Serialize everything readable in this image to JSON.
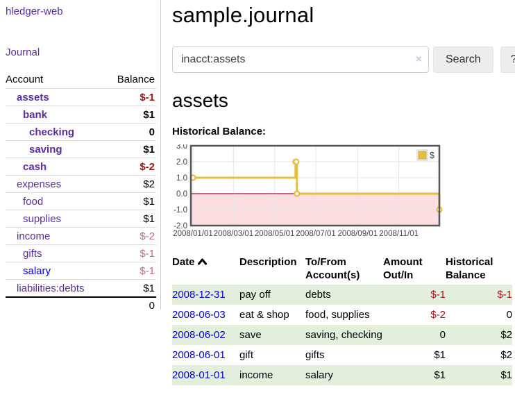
{
  "sidebar": {
    "brand": "hledger-web",
    "nav": {
      "journal": "Journal"
    },
    "accounts": {
      "headers": [
        "Account",
        "Balance"
      ],
      "rows": [
        {
          "account": "assets",
          "balance": "$-1",
          "indent": 1,
          "bold": true,
          "neg": "strong"
        },
        {
          "account": "bank",
          "balance": "$1",
          "indent": 2,
          "bold": true
        },
        {
          "account": "checking",
          "balance": "0",
          "indent": 3,
          "bold": true
        },
        {
          "account": "saving",
          "balance": "$1",
          "indent": 3,
          "bold": true
        },
        {
          "account": "cash",
          "balance": "$-2",
          "indent": 2,
          "bold": true,
          "neg": "strong"
        },
        {
          "account": "expenses",
          "balance": "$2",
          "indent": 1
        },
        {
          "account": "food",
          "balance": "$1",
          "indent": 2
        },
        {
          "account": "supplies",
          "balance": "$1",
          "indent": 2
        },
        {
          "account": "income",
          "balance": "$-2",
          "indent": 1,
          "neg": "muted"
        },
        {
          "account": "gifts",
          "balance": "$-1",
          "indent": 2,
          "neg": "muted"
        },
        {
          "account": "salary",
          "balance": "$-1",
          "indent": 2,
          "neg": "muted",
          "blue": true
        },
        {
          "account": "liabilities:debts",
          "balance": "$1",
          "indent": 1
        }
      ],
      "total": "0"
    }
  },
  "main": {
    "title": "sample.journal",
    "search": {
      "value": "inacct:assets",
      "clear_icon": "×",
      "button_label": "Search",
      "help_label": "?"
    },
    "section": {
      "heading": "assets",
      "chart_label": "Historical Balance:"
    },
    "register": {
      "headers": {
        "date": "Date",
        "description": "Description",
        "accounts": "To/From Account(s)",
        "amount": "Amount Out/In",
        "balance": "Historical Balance"
      },
      "rows": [
        {
          "date": "2008-12-31",
          "description": "pay off",
          "accounts": "debts",
          "amount": "$-1",
          "balance": "$-1",
          "amount_neg": true,
          "balance_neg": true
        },
        {
          "date": "2008-06-03",
          "description": "eat & shop",
          "accounts": "food, supplies",
          "amount": "$-2",
          "balance": "0",
          "amount_neg": true
        },
        {
          "date": "2008-06-02",
          "description": "save",
          "accounts": "saving, checking",
          "amount": "0",
          "balance": "$2"
        },
        {
          "date": "2008-06-01",
          "description": "gift",
          "accounts": "gifts",
          "amount": "$1",
          "balance": "$2"
        },
        {
          "date": "2008-01-01",
          "description": "income",
          "accounts": "salary",
          "amount": "$1",
          "balance": "$1"
        }
      ]
    }
  },
  "chart_data": {
    "type": "line",
    "step": true,
    "title": "Historical Balance:",
    "series": [
      {
        "name": "$",
        "color": "#e6bd43",
        "points": [
          [
            "2008-01-01",
            1
          ],
          [
            "2008-06-01",
            2
          ],
          [
            "2008-06-02",
            2
          ],
          [
            "2008-06-03",
            0
          ],
          [
            "2008-12-31",
            -1
          ]
        ]
      }
    ],
    "xlim": [
      "2008-01-01",
      "2008-12-31"
    ],
    "ylim": [
      -2,
      3
    ],
    "y_ticks": [
      3.0,
      2.0,
      1.0,
      0.0,
      -1.0,
      -2.0
    ],
    "x_ticks": [
      "2008/01/01",
      "2008/03/01",
      "2008/05/01",
      "2008/07/01",
      "2008/09/01",
      "2008/11/01"
    ],
    "grid": true,
    "legend_position": "top-right",
    "negative_fill": "#fcdee2",
    "zero_line_color": "#a21b25",
    "plot_border_color": "#555555"
  }
}
